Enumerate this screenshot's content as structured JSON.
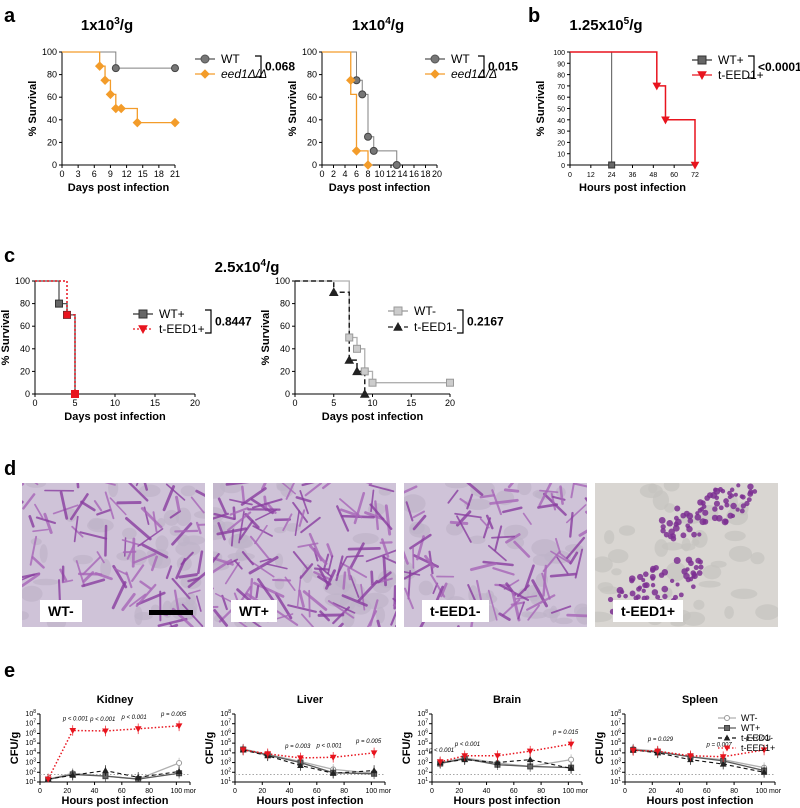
{
  "panel_labels": {
    "a": "a",
    "b": "b",
    "c": "c",
    "d": "d",
    "e": "e"
  },
  "survival": {
    "a1": {
      "title_base": "1x10",
      "title_exp": "3",
      "title_unit": "/g",
      "ylabel": "% Survival",
      "xlabel": "Days post infection",
      "xticks": [
        "0",
        "3",
        "6",
        "9",
        "12",
        "15",
        "18",
        "21"
      ],
      "yticks": [
        "0",
        "20",
        "40",
        "60",
        "80",
        "100"
      ],
      "legend": [
        "WT",
        "eed1Δ/Δ"
      ],
      "pvalue": "0.068"
    },
    "a2": {
      "title_base": "1x10",
      "title_exp": "4",
      "title_unit": "/g",
      "ylabel": "% Survival",
      "xlabel": "Days post infection",
      "xticks": [
        "0",
        "2",
        "4",
        "6",
        "8",
        "10",
        "12",
        "14",
        "16",
        "18",
        "20"
      ],
      "yticks": [
        "0",
        "20",
        "40",
        "60",
        "80",
        "100"
      ],
      "legend": [
        "WT",
        "eed1Δ/Δ"
      ],
      "pvalue": "0.015"
    },
    "b": {
      "title_base": "1.25x10",
      "title_exp": "5",
      "title_unit": "/g",
      "ylabel": "% Survival",
      "xlabel": "Hours post infection",
      "xticks": [
        "0",
        "12",
        "24",
        "36",
        "48",
        "60",
        "72"
      ],
      "yticks": [
        "0",
        "10",
        "20",
        "30",
        "40",
        "50",
        "60",
        "70",
        "80",
        "90",
        "100"
      ],
      "legend": [
        "WT+",
        "t-EED1+"
      ],
      "pvalue": "<0.0001"
    },
    "c_title": {
      "base": "2.5x10",
      "exp": "4",
      "unit": "/g"
    },
    "c1": {
      "ylabel": "% Survival",
      "xlabel": "Days post infection",
      "xticks": [
        "0",
        "5",
        "10",
        "15",
        "20"
      ],
      "yticks": [
        "0",
        "20",
        "40",
        "60",
        "80",
        "100"
      ],
      "legend": [
        "WT+",
        "t-EED1+"
      ],
      "pvalue": "0.8447"
    },
    "c2": {
      "ylabel": "% Survival",
      "xlabel": "Days post infection",
      "xticks": [
        "0",
        "5",
        "10",
        "15",
        "20"
      ],
      "yticks": [
        "0",
        "20",
        "40",
        "60",
        "80",
        "100"
      ],
      "legend": [
        "WT-",
        "t-EED1-"
      ],
      "pvalue": "0.2167"
    }
  },
  "histology": {
    "labels": [
      "WT-",
      "WT+",
      "t-EED1-",
      "t-EED1+"
    ]
  },
  "cfu": {
    "titles": [
      "Kidney",
      "Liver",
      "Brain",
      "Spleen"
    ],
    "ylabel": "CFU/g",
    "xlabel": "Hours post infection",
    "xticks": [
      "0",
      "20",
      "40",
      "60",
      "80",
      "100",
      "mor"
    ],
    "ytick_base": "10",
    "ytick_exps": [
      "1",
      "2",
      "3",
      "4",
      "5",
      "6",
      "7",
      "8"
    ],
    "legend": [
      "WT-",
      "WT+",
      "t-EED1-",
      "t-EED1+"
    ],
    "pvalues": [
      [
        "p < 0.001",
        "p < 0.001",
        "p < 0.001",
        "p = 0.005"
      ],
      [
        "p = 0.003",
        "p < 0.001",
        "p = 0.005"
      ],
      [
        "p < 0.001",
        "p < 0.001",
        "p = 0.015"
      ],
      [
        "p = 0.029",
        "p = 0.007",
        "p < 0.001"
      ]
    ]
  },
  "colors": {
    "wt": "#808080",
    "eed1": "#F39C2A",
    "red": "#E8141E",
    "grey_dark": "#5a5a5a",
    "grey_light": "#b0b0b0",
    "black": "#111111",
    "stain": "#8a3ea0"
  },
  "chart_data": [
    {
      "type": "line",
      "panel": "a",
      "title": "1x10^3/g",
      "xlabel": "Days post infection",
      "ylabel": "% Survival",
      "xlim": [
        0,
        21
      ],
      "ylim": [
        0,
        100
      ],
      "series": [
        {
          "name": "WT",
          "x": [
            0,
            10,
            10,
            21
          ],
          "y": [
            100,
            100,
            85.7,
            85.7
          ]
        },
        {
          "name": "eed1Δ/Δ",
          "x": [
            0,
            7,
            8,
            9,
            10,
            11,
            14,
            21
          ],
          "y": [
            100,
            87.5,
            75,
            62.5,
            50,
            50,
            37.5,
            37.5
          ]
        }
      ]
    },
    {
      "type": "line",
      "panel": "a",
      "title": "1x10^4/g",
      "xlabel": "Days post infection",
      "ylabel": "% Survival",
      "xlim": [
        0,
        20
      ],
      "ylim": [
        0,
        100
      ],
      "series": [
        {
          "name": "WT",
          "x": [
            0,
            6,
            7,
            8,
            9,
            13
          ],
          "y": [
            100,
            75,
            62.5,
            25,
            12.5,
            0
          ]
        },
        {
          "name": "eed1Δ/Δ",
          "x": [
            0,
            5,
            6,
            8
          ],
          "y": [
            100,
            62.5,
            12.5,
            0
          ]
        }
      ]
    },
    {
      "type": "line",
      "panel": "b",
      "title": "1.25x10^5/g",
      "xlabel": "Hours post infection",
      "ylabel": "% Survival",
      "xlim": [
        0,
        72
      ],
      "ylim": [
        0,
        100
      ],
      "series": [
        {
          "name": "WT+",
          "x": [
            0,
            24
          ],
          "y": [
            100,
            0
          ]
        },
        {
          "name": "t-EED1+",
          "x": [
            0,
            50,
            55,
            72
          ],
          "y": [
            100,
            70,
            40,
            0
          ]
        }
      ]
    },
    {
      "type": "line",
      "panel": "c",
      "title": "2.5x10^4/g",
      "xlabel": "Days post infection",
      "ylabel": "% Survival",
      "xlim": [
        0,
        20
      ],
      "ylim": [
        0,
        100
      ],
      "series": [
        {
          "name": "WT+",
          "x": [
            0,
            3,
            4,
            5
          ],
          "y": [
            100,
            80,
            70,
            0
          ]
        },
        {
          "name": "t-EED1+",
          "x": [
            0,
            4,
            5
          ],
          "y": [
            100,
            70,
            0
          ]
        }
      ]
    },
    {
      "type": "line",
      "panel": "c",
      "xlabel": "Days post infection",
      "ylabel": "% Survival",
      "xlim": [
        0,
        20
      ],
      "ylim": [
        0,
        100
      ],
      "series": [
        {
          "name": "WT-",
          "x": [
            0,
            7,
            8,
            9,
            10,
            20
          ],
          "y": [
            100,
            50,
            40,
            20,
            10,
            10
          ]
        },
        {
          "name": "t-EED1-",
          "x": [
            0,
            5,
            7,
            8,
            9
          ],
          "y": [
            100,
            90,
            30,
            20,
            0
          ]
        }
      ]
    },
    {
      "type": "line",
      "panel": "e",
      "title": "Kidney",
      "xlabel": "Hours post infection",
      "ylabel": "CFU/g",
      "log_y": true,
      "xlim": [
        0,
        110
      ],
      "x": [
        6,
        24,
        48,
        72,
        "mor"
      ],
      "series": [
        {
          "name": "WT-",
          "y": [
            20,
            80,
            40,
            20,
            900
          ]
        },
        {
          "name": "WT+",
          "y": [
            18,
            60,
            40,
            20,
            80
          ]
        },
        {
          "name": "t-EED1-",
          "y": [
            20,
            50,
            150,
            30,
            120
          ]
        },
        {
          "name": "t-EED1+",
          "y": [
            20,
            2000000,
            1800000,
            3000000,
            6000000
          ]
        }
      ]
    },
    {
      "type": "line",
      "panel": "e",
      "title": "Liver",
      "xlabel": "Hours post infection",
      "ylabel": "CFU/g",
      "log_y": true,
      "xlim": [
        0,
        110
      ],
      "x": [
        6,
        24,
        48,
        72,
        "mor"
      ],
      "series": [
        {
          "name": "WT-",
          "y": [
            25000,
            7000,
            1300,
            200,
            80
          ]
        },
        {
          "name": "WT+",
          "y": [
            22000,
            6000,
            1000,
            90,
            70
          ]
        },
        {
          "name": "t-EED1-",
          "y": [
            20000,
            5000,
            500,
            80,
            150
          ]
        },
        {
          "name": "t-EED1+",
          "y": [
            20000,
            8000,
            3000,
            3500,
            10000
          ]
        }
      ]
    },
    {
      "type": "line",
      "panel": "e",
      "title": "Brain",
      "xlabel": "Hours post infection",
      "ylabel": "CFU/g",
      "log_y": true,
      "xlim": [
        0,
        110
      ],
      "x": [
        6,
        24,
        48,
        72,
        "mor"
      ],
      "series": [
        {
          "name": "WT-",
          "y": [
            1000,
            3000,
            900,
            400,
            2000
          ]
        },
        {
          "name": "WT+",
          "y": [
            800,
            2500,
            600,
            400,
            300
          ]
        },
        {
          "name": "t-EED1-",
          "y": [
            1000,
            2000,
            1000,
            2000,
            250
          ]
        },
        {
          "name": "t-EED1+",
          "y": [
            1200,
            5000,
            5000,
            15000,
            80000
          ]
        }
      ]
    },
    {
      "type": "line",
      "panel": "e",
      "title": "Spleen",
      "xlabel": "Hours post infection",
      "ylabel": "CFU/g",
      "log_y": true,
      "xlim": [
        0,
        110
      ],
      "x": [
        6,
        24,
        48,
        72,
        "mor"
      ],
      "series": [
        {
          "name": "WT-",
          "y": [
            25000,
            15000,
            4000,
            2000,
            300
          ]
        },
        {
          "name": "WT+",
          "y": [
            20000,
            12000,
            4000,
            1500,
            150
          ]
        },
        {
          "name": "t-EED1-",
          "y": [
            20000,
            10000,
            2000,
            700,
            100
          ]
        },
        {
          "name": "t-EED1+",
          "y": [
            18000,
            15000,
            5000,
            4000,
            20000
          ]
        }
      ]
    }
  ]
}
